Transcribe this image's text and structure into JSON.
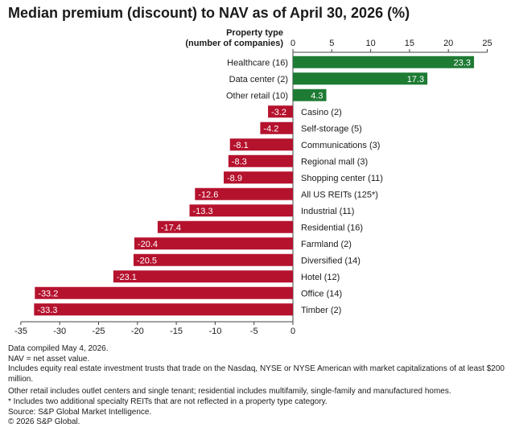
{
  "title": "Median premium (discount) to NAV as of April 30, 2026 (%)",
  "chart_data": {
    "type": "bar",
    "orientation": "horizontal",
    "category_header": [
      "Property type",
      "(number of companies)"
    ],
    "categories": [
      "Healthcare (16)",
      "Data center (2)",
      "Other retail (10)",
      "Casino (2)",
      "Self-storage (5)",
      "Communications (3)",
      "Regional mall (3)",
      "Shopping center (11)",
      "All US REITs (125*)",
      "Industrial (11)",
      "Residential (16)",
      "Farmland (2)",
      "Diversified (14)",
      "Hotel (12)",
      "Office (14)",
      "Timber (2)"
    ],
    "values": [
      23.3,
      17.3,
      4.3,
      -3.2,
      -4.2,
      -8.1,
      -8.3,
      -8.9,
      -12.6,
      -13.3,
      -17.4,
      -20.4,
      -20.5,
      -23.1,
      -33.2,
      -33.3
    ],
    "value_labels": [
      "23.3",
      "17.3",
      "4.3",
      "-3.2",
      "-4.2",
      "-8.1",
      "-8.3",
      "-8.9",
      "-12.6",
      "-13.3",
      "-17.4",
      "-20.4",
      "-20.5",
      "-23.1",
      "-33.2",
      "-33.3"
    ],
    "top_axis": {
      "range": [
        0,
        25
      ],
      "ticks": [
        "0",
        "5",
        "10",
        "15",
        "20",
        "25"
      ]
    },
    "bottom_axis": {
      "range": [
        -35,
        0
      ],
      "ticks": [
        "-35",
        "-30",
        "-25",
        "-20",
        "-15",
        "-10",
        "-5",
        "0"
      ]
    },
    "colors": {
      "positive": "#1e7b34",
      "negative": "#b5122e"
    }
  },
  "footnotes": [
    "Data compiled May 4, 2026.",
    "NAV = net asset value.",
    "Includes equity real estate investment trusts that trade on the Nasdaq, NYSE or NYSE American with market capitalizations of at least $200 million.",
    "Other retail includes outlet centers and single tenant; residential includes multifamily, single-family and manufactured homes.",
    "* Includes two additional specialty REITs that are not reflected in a property type category.",
    "Source: S&P Global Market Intelligence.",
    "© 2026 S&P Global."
  ]
}
